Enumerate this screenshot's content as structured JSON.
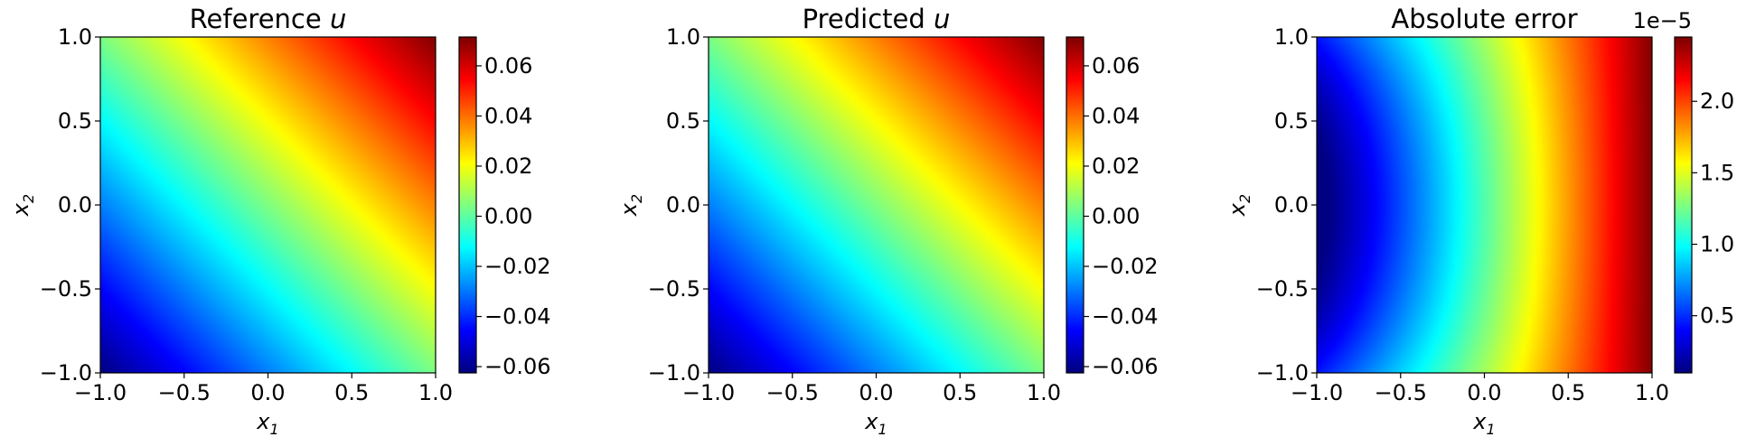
{
  "chart_data": [
    {
      "type": "heatmap",
      "title": "Reference u",
      "title_text": "Reference ",
      "title_var": "u",
      "xlabel": "x1",
      "ylabel": "x2",
      "xlim": [
        -1.0,
        1.0
      ],
      "ylim": [
        -1.0,
        1.0
      ],
      "x_ticks": [
        "−1.0",
        "−0.5",
        "0.0",
        "0.5",
        "1.0"
      ],
      "y_ticks": [
        "−1.0",
        "−0.5",
        "0.0",
        "0.5",
        "1.0"
      ],
      "colormap": "jet",
      "field": "linear_diagonal",
      "corner_values": {
        "x1=-1,x2=-1": -0.0625,
        "x1=1,x2=1": 0.0715,
        "x1=-1,x2=1": 0.004,
        "x1=1,x2=-1": 0.004
      },
      "colorbar": {
        "range": [
          -0.0625,
          0.0715
        ],
        "ticks": [
          -0.06,
          -0.04,
          -0.02,
          0.0,
          0.02,
          0.04,
          0.06
        ],
        "tick_labels": [
          "−0.06",
          "−0.04",
          "−0.02",
          "0.00",
          "0.02",
          "0.04",
          "0.06"
        ],
        "offset_text": ""
      }
    },
    {
      "type": "heatmap",
      "title": "Predicted u",
      "title_text": "Predicted ",
      "title_var": "u",
      "xlabel": "x1",
      "ylabel": "x2",
      "xlim": [
        -1.0,
        1.0
      ],
      "ylim": [
        -1.0,
        1.0
      ],
      "x_ticks": [
        "−1.0",
        "−0.5",
        "0.0",
        "0.5",
        "1.0"
      ],
      "y_ticks": [
        "−1.0",
        "−0.5",
        "0.0",
        "0.5",
        "1.0"
      ],
      "colormap": "jet",
      "field": "linear_diagonal",
      "corner_values": {
        "x1=-1,x2=-1": -0.0625,
        "x1=1,x2=1": 0.0715,
        "x1=-1,x2=1": 0.004,
        "x1=1,x2=-1": 0.004
      },
      "colorbar": {
        "range": [
          -0.0625,
          0.0715
        ],
        "ticks": [
          -0.06,
          -0.04,
          -0.02,
          0.0,
          0.02,
          0.04,
          0.06
        ],
        "tick_labels": [
          "−0.06",
          "−0.04",
          "−0.02",
          "0.00",
          "0.02",
          "0.04",
          "0.06"
        ],
        "offset_text": ""
      }
    },
    {
      "type": "heatmap",
      "title": "Absolute error",
      "title_text": "Absolute error",
      "title_var": "",
      "xlabel": "x1",
      "ylabel": "x2",
      "xlim": [
        -1.0,
        1.0
      ],
      "ylim": [
        -1.0,
        1.0
      ],
      "x_ticks": [
        "−1.0",
        "−0.5",
        "0.0",
        "0.5",
        "1.0"
      ],
      "y_ticks": [
        "−1.0",
        "−0.5",
        "0.0",
        "0.5",
        "1.0"
      ],
      "colormap": "jet",
      "field": "error_curved",
      "value_at_left_middle": 1e-06,
      "value_at_right_edge": 2.45e-05,
      "colorbar": {
        "range": [
          1e-06,
          2.45e-05
        ],
        "ticks": [
          5e-06,
          1e-05,
          1.5e-05,
          2e-05
        ],
        "tick_labels": [
          "0.5",
          "1.0",
          "1.5",
          "2.0"
        ],
        "offset_text": "1e−5"
      }
    }
  ]
}
